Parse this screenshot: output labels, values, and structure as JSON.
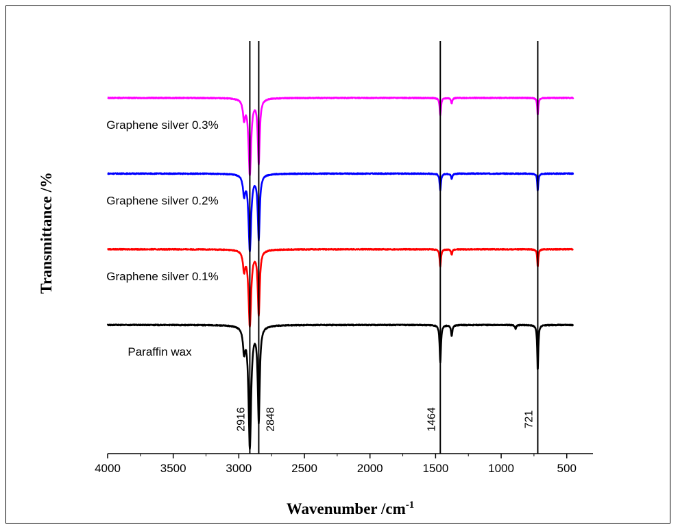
{
  "chart_data": {
    "type": "line",
    "title": "",
    "xlabel": "Wavenumber /cm",
    "xlabel_superscript": "-1",
    "ylabel": "Transmittance /%",
    "xlim": [
      4000,
      300
    ],
    "x_reversed": true,
    "x_ticks": [
      4000,
      3500,
      3000,
      2500,
      2000,
      1500,
      1000,
      500
    ],
    "x_tick_labels": [
      "4000",
      "3500",
      "3000",
      "2500",
      "2000",
      "1500",
      "1000",
      "500"
    ],
    "y_axis_ticks": false,
    "grid": false,
    "legend": "none",
    "peak_markers": [
      {
        "x": 2916,
        "label": "2916"
      },
      {
        "x": 2848,
        "label": "2848"
      },
      {
        "x": 1464,
        "label": "1464"
      },
      {
        "x": 721,
        "label": "721"
      }
    ],
    "series": [
      {
        "name": "Graphene silver 0.3%",
        "color": "#ff00ff",
        "baseline": 3.0,
        "x_range": [
          4000,
          450
        ],
        "peaks": [
          {
            "x": 2960,
            "depth": 0.25,
            "width": 10
          },
          {
            "x": 2916,
            "depth": 1.0,
            "width": 12
          },
          {
            "x": 2848,
            "depth": 0.85,
            "width": 9
          },
          {
            "x": 1464,
            "depth": 0.23,
            "width": 6
          },
          {
            "x": 1377,
            "depth": 0.07,
            "width": 6
          },
          {
            "x": 721,
            "depth": 0.23,
            "width": 5
          }
        ]
      },
      {
        "name": "Graphene silver 0.2%",
        "color": "#0000ff",
        "baseline": 2.0,
        "x_range": [
          4000,
          450
        ],
        "peaks": [
          {
            "x": 2960,
            "depth": 0.25,
            "width": 10
          },
          {
            "x": 2916,
            "depth": 1.0,
            "width": 12
          },
          {
            "x": 2848,
            "depth": 0.85,
            "width": 9
          },
          {
            "x": 1464,
            "depth": 0.23,
            "width": 6
          },
          {
            "x": 1377,
            "depth": 0.07,
            "width": 6
          },
          {
            "x": 721,
            "depth": 0.23,
            "width": 5
          }
        ]
      },
      {
        "name": "Graphene silver 0.1%",
        "color": "#ff0000",
        "baseline": 1.0,
        "x_range": [
          4000,
          450
        ],
        "peaks": [
          {
            "x": 2960,
            "depth": 0.25,
            "width": 10
          },
          {
            "x": 2916,
            "depth": 1.0,
            "width": 12
          },
          {
            "x": 2848,
            "depth": 0.85,
            "width": 9
          },
          {
            "x": 1464,
            "depth": 0.23,
            "width": 6
          },
          {
            "x": 1377,
            "depth": 0.07,
            "width": 6
          },
          {
            "x": 721,
            "depth": 0.23,
            "width": 5
          }
        ]
      },
      {
        "name": "Paraffin wax",
        "color": "#000000",
        "baseline": 0.0,
        "x_range": [
          4000,
          450
        ],
        "peaks": [
          {
            "x": 2960,
            "depth": 0.3,
            "width": 10
          },
          {
            "x": 2916,
            "depth": 1.6,
            "width": 12
          },
          {
            "x": 2848,
            "depth": 1.25,
            "width": 9
          },
          {
            "x": 1464,
            "depth": 0.5,
            "width": 6
          },
          {
            "x": 1377,
            "depth": 0.15,
            "width": 6
          },
          {
            "x": 890,
            "depth": 0.05,
            "width": 6
          },
          {
            "x": 721,
            "depth": 0.6,
            "width": 5
          }
        ]
      }
    ],
    "y_range": [
      -1.7,
      3.75
    ]
  }
}
